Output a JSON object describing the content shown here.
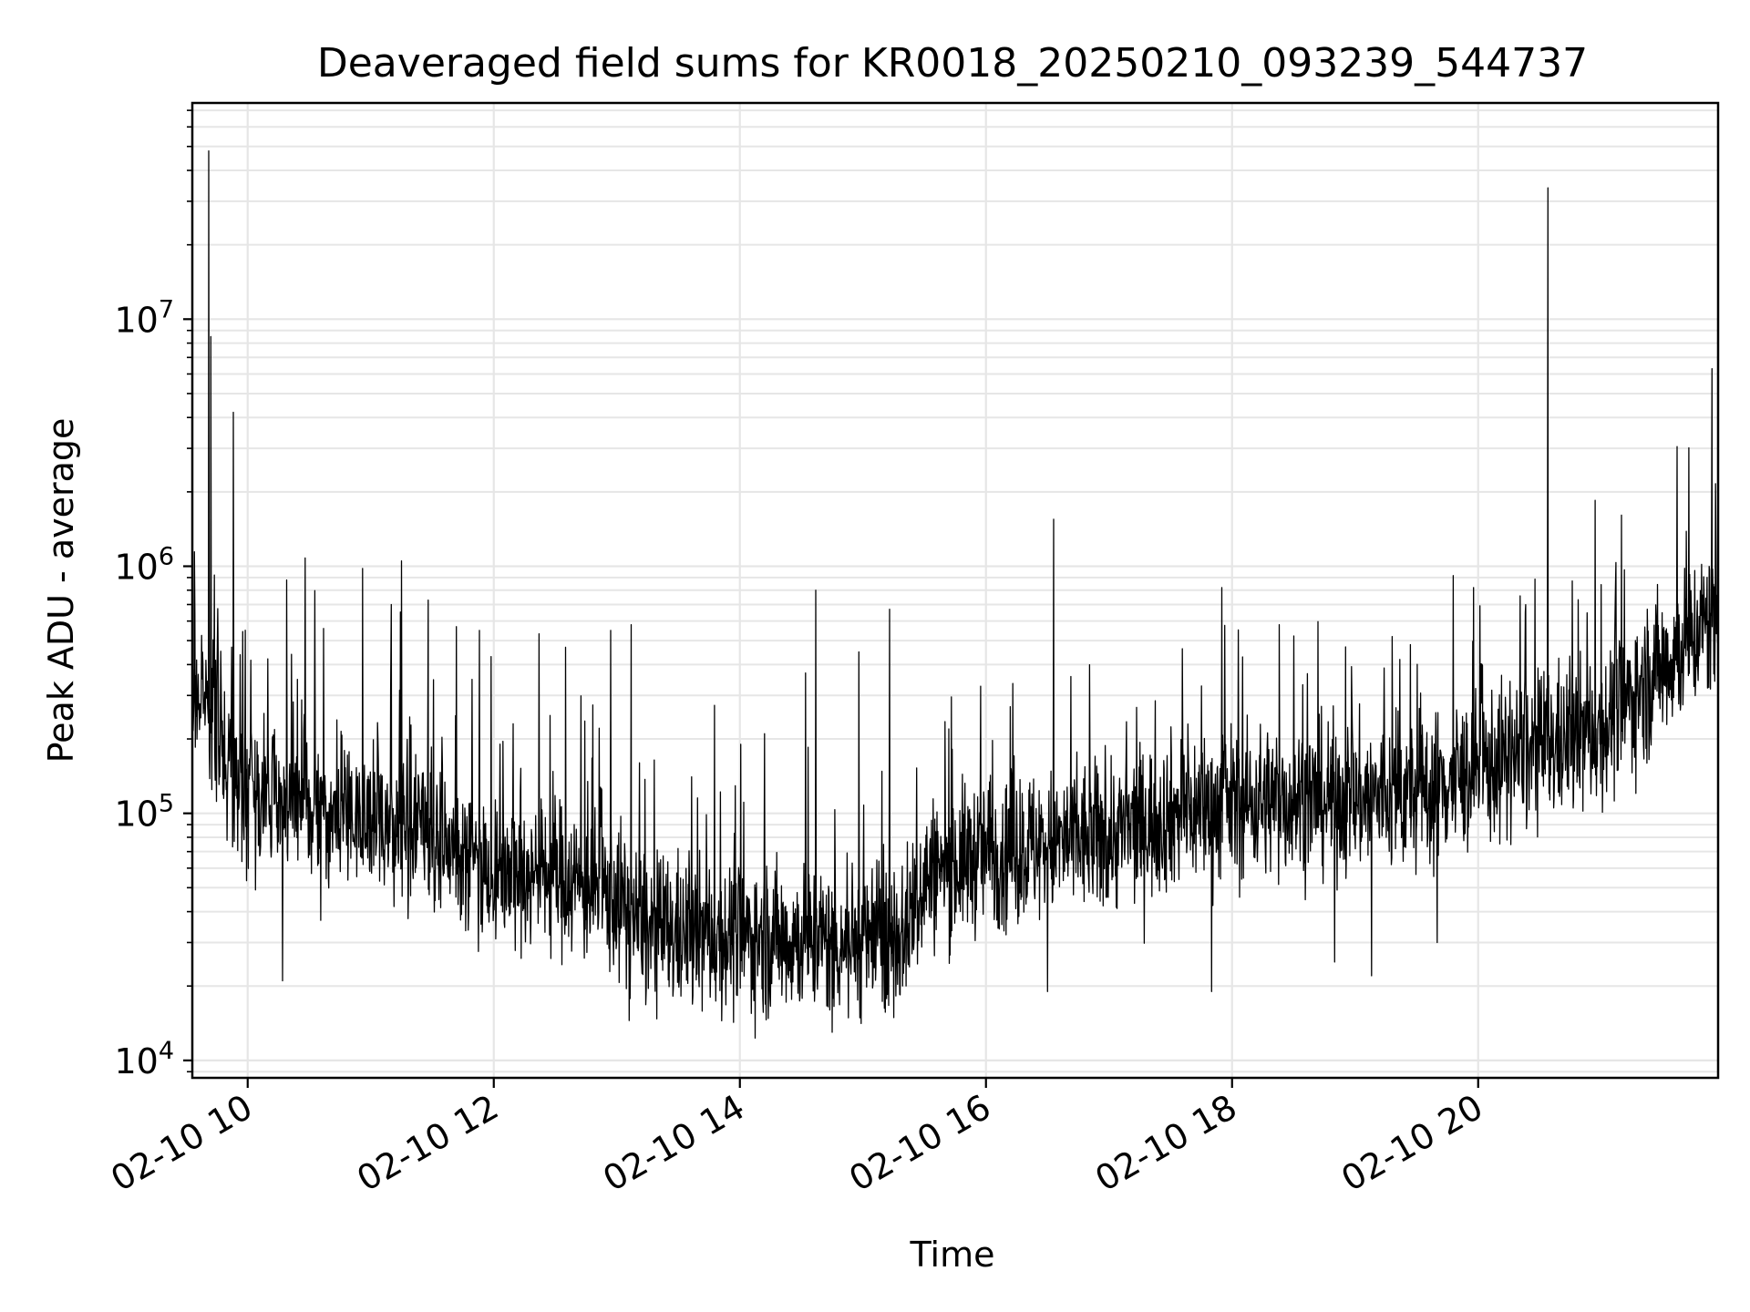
{
  "chart_data": {
    "type": "line",
    "title": "Deaveraged field sums for KR0018_20250210_093239_544737",
    "xlabel": "Time",
    "ylabel": "Peak ADU - average",
    "yscale": "log",
    "grid": true,
    "line_color": "#000000",
    "xlim": [
      "2025-02-10T09:33",
      "2025-02-10T21:57"
    ],
    "ylim": [
      8500,
      75000000
    ],
    "x_ticks": [
      {
        "value": "2025-02-10T10:00",
        "label": "02-10 10"
      },
      {
        "value": "2025-02-10T12:00",
        "label": "02-10 12"
      },
      {
        "value": "2025-02-10T14:00",
        "label": "02-10 14"
      },
      {
        "value": "2025-02-10T16:00",
        "label": "02-10 16"
      },
      {
        "value": "2025-02-10T18:00",
        "label": "02-10 18"
      },
      {
        "value": "2025-02-10T20:00",
        "label": "02-10 20"
      }
    ],
    "y_ticks": [
      {
        "value": 10000,
        "base": "10",
        "exp": "4"
      },
      {
        "value": 100000,
        "base": "10",
        "exp": "5"
      },
      {
        "value": 1000000,
        "base": "10",
        "exp": "6"
      },
      {
        "value": 10000000,
        "base": "10",
        "exp": "7"
      }
    ],
    "baseline": [
      [
        "2025-02-10T09:33",
        300000
      ],
      [
        "2025-02-10T09:40",
        320000
      ],
      [
        "2025-02-10T09:50",
        170000
      ],
      [
        "2025-02-10T10:05",
        120000
      ],
      [
        "2025-02-10T10:30",
        100000
      ],
      [
        "2025-02-10T11:00",
        95000
      ],
      [
        "2025-02-10T11:30",
        80000
      ],
      [
        "2025-02-10T12:00",
        60000
      ],
      [
        "2025-02-10T12:30",
        57000
      ],
      [
        "2025-02-10T13:00",
        45000
      ],
      [
        "2025-02-10T13:15",
        33000
      ],
      [
        "2025-02-10T13:45",
        32000
      ],
      [
        "2025-02-10T14:30",
        31000
      ],
      [
        "2025-02-10T15:00",
        30000
      ],
      [
        "2025-02-10T15:20",
        33000
      ],
      [
        "2025-02-10T15:30",
        55000
      ],
      [
        "2025-02-10T16:00",
        70000
      ],
      [
        "2025-02-10T16:30",
        75000
      ],
      [
        "2025-02-10T17:00",
        80000
      ],
      [
        "2025-02-10T17:30",
        100000
      ],
      [
        "2025-02-10T18:00",
        110000
      ],
      [
        "2025-02-10T18:30",
        115000
      ],
      [
        "2025-02-10T19:00",
        115000
      ],
      [
        "2025-02-10T19:30",
        120000
      ],
      [
        "2025-02-10T20:00",
        150000
      ],
      [
        "2025-02-10T20:30",
        180000
      ],
      [
        "2025-02-10T21:00",
        220000
      ],
      [
        "2025-02-10T21:30",
        400000
      ],
      [
        "2025-02-10T21:57",
        650000
      ]
    ],
    "spikes": [
      [
        "2025-02-10T09:41",
        48000000
      ],
      [
        "2025-02-10T09:42",
        8500000
      ],
      [
        "2025-02-10T09:53",
        4200000
      ],
      [
        "2025-02-10T10:17",
        420000
      ],
      [
        "2025-02-10T10:19",
        880000
      ],
      [
        "2025-02-10T10:28",
        1080000
      ],
      [
        "2025-02-10T10:37",
        560000
      ],
      [
        "2025-02-10T10:56",
        980000
      ],
      [
        "2025-02-10T11:10",
        700000
      ],
      [
        "2025-02-10T11:15",
        1050000
      ],
      [
        "2025-02-10T11:28",
        730000
      ],
      [
        "2025-02-10T11:53",
        550000
      ],
      [
        "2025-02-10T12:35",
        470000
      ],
      [
        "2025-02-10T12:57",
        550000
      ],
      [
        "2025-02-10T13:07",
        580000
      ],
      [
        "2025-02-10T14:12",
        210000
      ],
      [
        "2025-02-10T14:32",
        370000
      ],
      [
        "2025-02-10T14:37",
        800000
      ],
      [
        "2025-02-10T14:58",
        450000
      ],
      [
        "2025-02-10T15:13",
        670000
      ],
      [
        "2025-02-10T16:33",
        1550000
      ],
      [
        "2025-02-10T17:55",
        820000
      ],
      [
        "2025-02-10T18:23",
        580000
      ],
      [
        "2025-02-10T20:23",
        650000
      ],
      [
        "2025-02-10T20:34",
        34000000
      ],
      [
        "2025-02-10T21:07",
        860000
      ],
      [
        "2025-02-10T21:37",
        3050000
      ],
      [
        "2025-02-10T21:54",
        6300000
      ]
    ],
    "dips": [
      [
        "2025-02-10T10:17",
        21000
      ],
      [
        "2025-02-10T13:06",
        14500
      ],
      [
        "2025-02-10T14:45",
        13000
      ],
      [
        "2025-02-10T16:30",
        19000
      ],
      [
        "2025-02-10T17:50",
        19000
      ],
      [
        "2025-02-10T18:50",
        25000
      ],
      [
        "2025-02-10T19:08",
        22000
      ],
      [
        "2025-02-10T19:40",
        30000
      ]
    ]
  }
}
